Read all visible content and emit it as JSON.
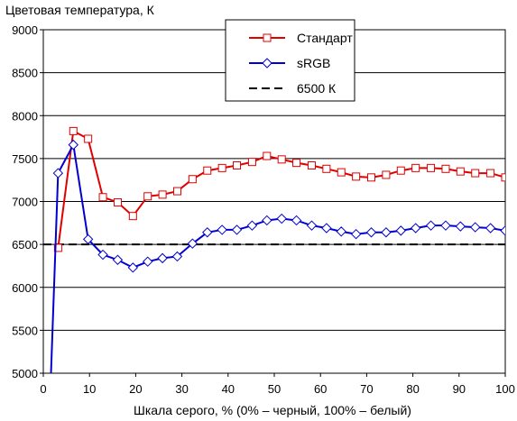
{
  "chart_data": {
    "type": "line",
    "title": "",
    "ylabel": "Цветовая температура, К",
    "xlabel": "Шкала серого, % (0% – черный, 100% – белый)",
    "xlim": [
      0,
      100
    ],
    "ylim": [
      5000,
      9000
    ],
    "x_ticks": [
      0,
      10,
      20,
      30,
      40,
      50,
      60,
      70,
      80,
      90,
      100
    ],
    "y_ticks": [
      5000,
      5500,
      6000,
      6500,
      7000,
      7500,
      8000,
      8500,
      9000
    ],
    "grid": "horizontal",
    "legend_position": "top-center",
    "series": [
      {
        "name": "Стандарт",
        "color": "#e00000",
        "marker": "square",
        "x": [
          3.2,
          6.5,
          9.7,
          12.9,
          16.1,
          19.4,
          22.6,
          25.8,
          29.0,
          32.3,
          35.5,
          38.7,
          41.9,
          45.2,
          48.4,
          51.6,
          54.8,
          58.1,
          61.3,
          64.5,
          67.7,
          71.0,
          74.2,
          77.4,
          80.6,
          83.9,
          87.1,
          90.3,
          93.5,
          96.8,
          100
        ],
        "values": [
          6460,
          7820,
          7730,
          7050,
          6990,
          6830,
          7060,
          7080,
          7120,
          7260,
          7360,
          7390,
          7420,
          7460,
          7530,
          7490,
          7450,
          7420,
          7380,
          7340,
          7290,
          7280,
          7310,
          7360,
          7390,
          7390,
          7380,
          7350,
          7330,
          7330,
          7280
        ]
      },
      {
        "name": "sRGB",
        "color": "#0000d0",
        "marker": "diamond",
        "x": [
          1.6,
          3.2,
          6.5,
          9.7,
          12.9,
          16.1,
          19.4,
          22.6,
          25.8,
          29.0,
          32.3,
          35.5,
          38.7,
          41.9,
          45.2,
          48.4,
          51.6,
          54.8,
          58.1,
          61.3,
          64.5,
          67.7,
          71.0,
          74.2,
          77.4,
          80.6,
          83.9,
          87.1,
          90.3,
          93.5,
          96.8,
          100
        ],
        "values": [
          4900,
          7330,
          7660,
          6560,
          6380,
          6320,
          6230,
          6300,
          6340,
          6360,
          6510,
          6640,
          6670,
          6670,
          6720,
          6780,
          6800,
          6780,
          6720,
          6690,
          6650,
          6620,
          6640,
          6640,
          6660,
          6690,
          6720,
          6720,
          6710,
          6700,
          6690,
          6660
        ]
      },
      {
        "name": "6500 К",
        "color": "#000000",
        "dash": true,
        "x": [
          0,
          100
        ],
        "values": [
          6500,
          6500
        ]
      }
    ]
  }
}
